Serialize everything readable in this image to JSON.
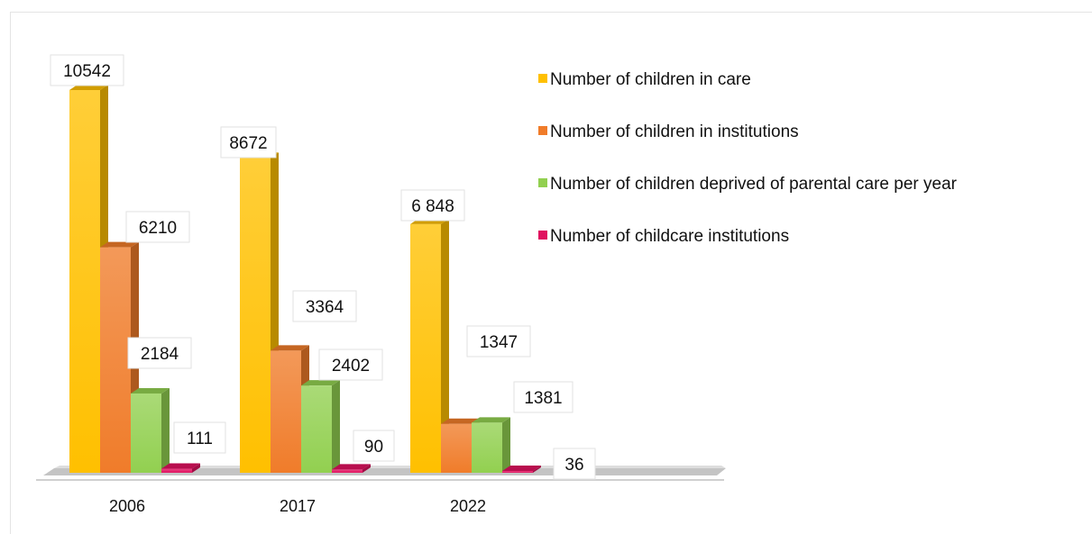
{
  "chart_data": {
    "type": "bar",
    "categories": [
      "2006",
      "2017",
      "2022"
    ],
    "series": [
      {
        "name": "Number of children in care",
        "values": [
          10542,
          8672,
          6848
        ],
        "labels": [
          "10542",
          "8672",
          "6 848"
        ],
        "color": "#FFC000"
      },
      {
        "name": "Number of children in institutions",
        "values": [
          6210,
          3364,
          1347
        ],
        "labels": [
          "6210",
          "3364",
          "1347"
        ],
        "color": "#F07C2A"
      },
      {
        "name": "Number of children deprived of parental care per year",
        "values": [
          2184,
          2402,
          1381
        ],
        "labels": [
          "2184",
          "2402",
          "1381"
        ],
        "color": "#92D050"
      },
      {
        "name": "Number of childcare institutions",
        "values": [
          111,
          90,
          36
        ],
        "labels": [
          "111",
          "90",
          "36"
        ],
        "color": "#E0115F"
      }
    ],
    "ylim": [
      0,
      11000
    ],
    "grid": false,
    "legend_position": "top-right"
  }
}
